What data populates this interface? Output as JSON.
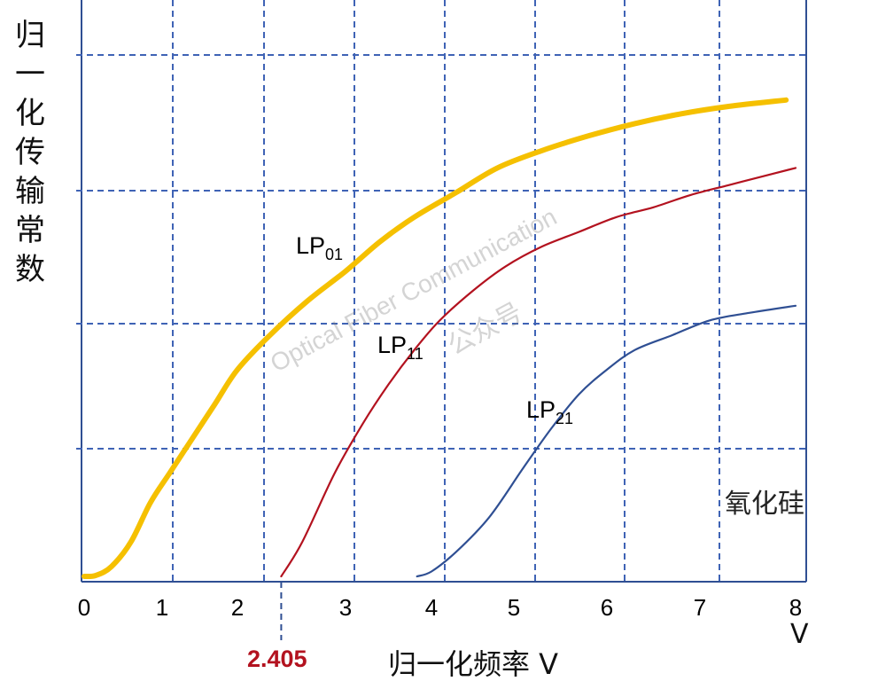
{
  "chart_data": {
    "type": "line",
    "ylabel": "归一化传输常数",
    "xlabel": "归一化频率 V",
    "x_unit": "V",
    "xlim": [
      0,
      8
    ],
    "ylim": [
      0,
      1
    ],
    "x_ticks": [
      "0",
      "1",
      "2",
      "3",
      "4",
      "5",
      "6",
      "7",
      "8"
    ],
    "cutoff_label": "2.405",
    "cutoff_value": 2.405,
    "annotation": "氧化硅",
    "watermark": [
      "Optical Fiber Communication",
      "公众号"
    ],
    "grid": "dashed",
    "colors": {
      "LP01": "#f5c000",
      "LP11": "#b3121f",
      "LP21": "#2f4f93",
      "grid": "#3f63b5",
      "axis": "#2f4f93",
      "cutoff": "#b3121f"
    },
    "series": [
      {
        "name": "LP01",
        "label_main": "LP",
        "label_sub": "01",
        "x": [
          0,
          0.15,
          0.35,
          0.6,
          0.85,
          1.1,
          1.4,
          1.7,
          2.0,
          2.3,
          2.65,
          3.0,
          3.4,
          3.8,
          4.3,
          4.8,
          5.3,
          5.8,
          6.3,
          6.8,
          7.3,
          7.9
        ],
        "y": [
          0.0,
          0.002,
          0.02,
          0.07,
          0.15,
          0.21,
          0.28,
          0.35,
          0.42,
          0.49,
          0.56,
          0.62,
          0.68,
          0.73,
          0.78,
          0.83,
          0.865,
          0.895,
          0.92,
          0.94,
          0.955,
          0.968
        ]
      },
      {
        "name": "LP11",
        "label_main": "LP",
        "label_sub": "11",
        "x": [
          2.405,
          2.6,
          2.9,
          3.2,
          3.5,
          3.8,
          4.1,
          4.5,
          4.9,
          5.3,
          5.7,
          6.1,
          6.5,
          6.9,
          7.3,
          7.7,
          8.0
        ],
        "y": [
          0.0,
          0.07,
          0.21,
          0.31,
          0.39,
          0.46,
          0.52,
          0.58,
          0.63,
          0.67,
          0.7,
          0.73,
          0.75,
          0.775,
          0.795,
          0.815,
          0.83
        ]
      },
      {
        "name": "LP21",
        "label_main": "LP",
        "label_sub": "21",
        "x": [
          3.832,
          4.0,
          4.3,
          4.7,
          5.1,
          5.4,
          5.7,
          6.0,
          6.3,
          6.7,
          7.1,
          7.5,
          8.0
        ],
        "y": [
          0.0,
          0.01,
          0.05,
          0.12,
          0.22,
          0.3,
          0.37,
          0.42,
          0.46,
          0.49,
          0.52,
          0.535,
          0.55
        ]
      }
    ]
  }
}
